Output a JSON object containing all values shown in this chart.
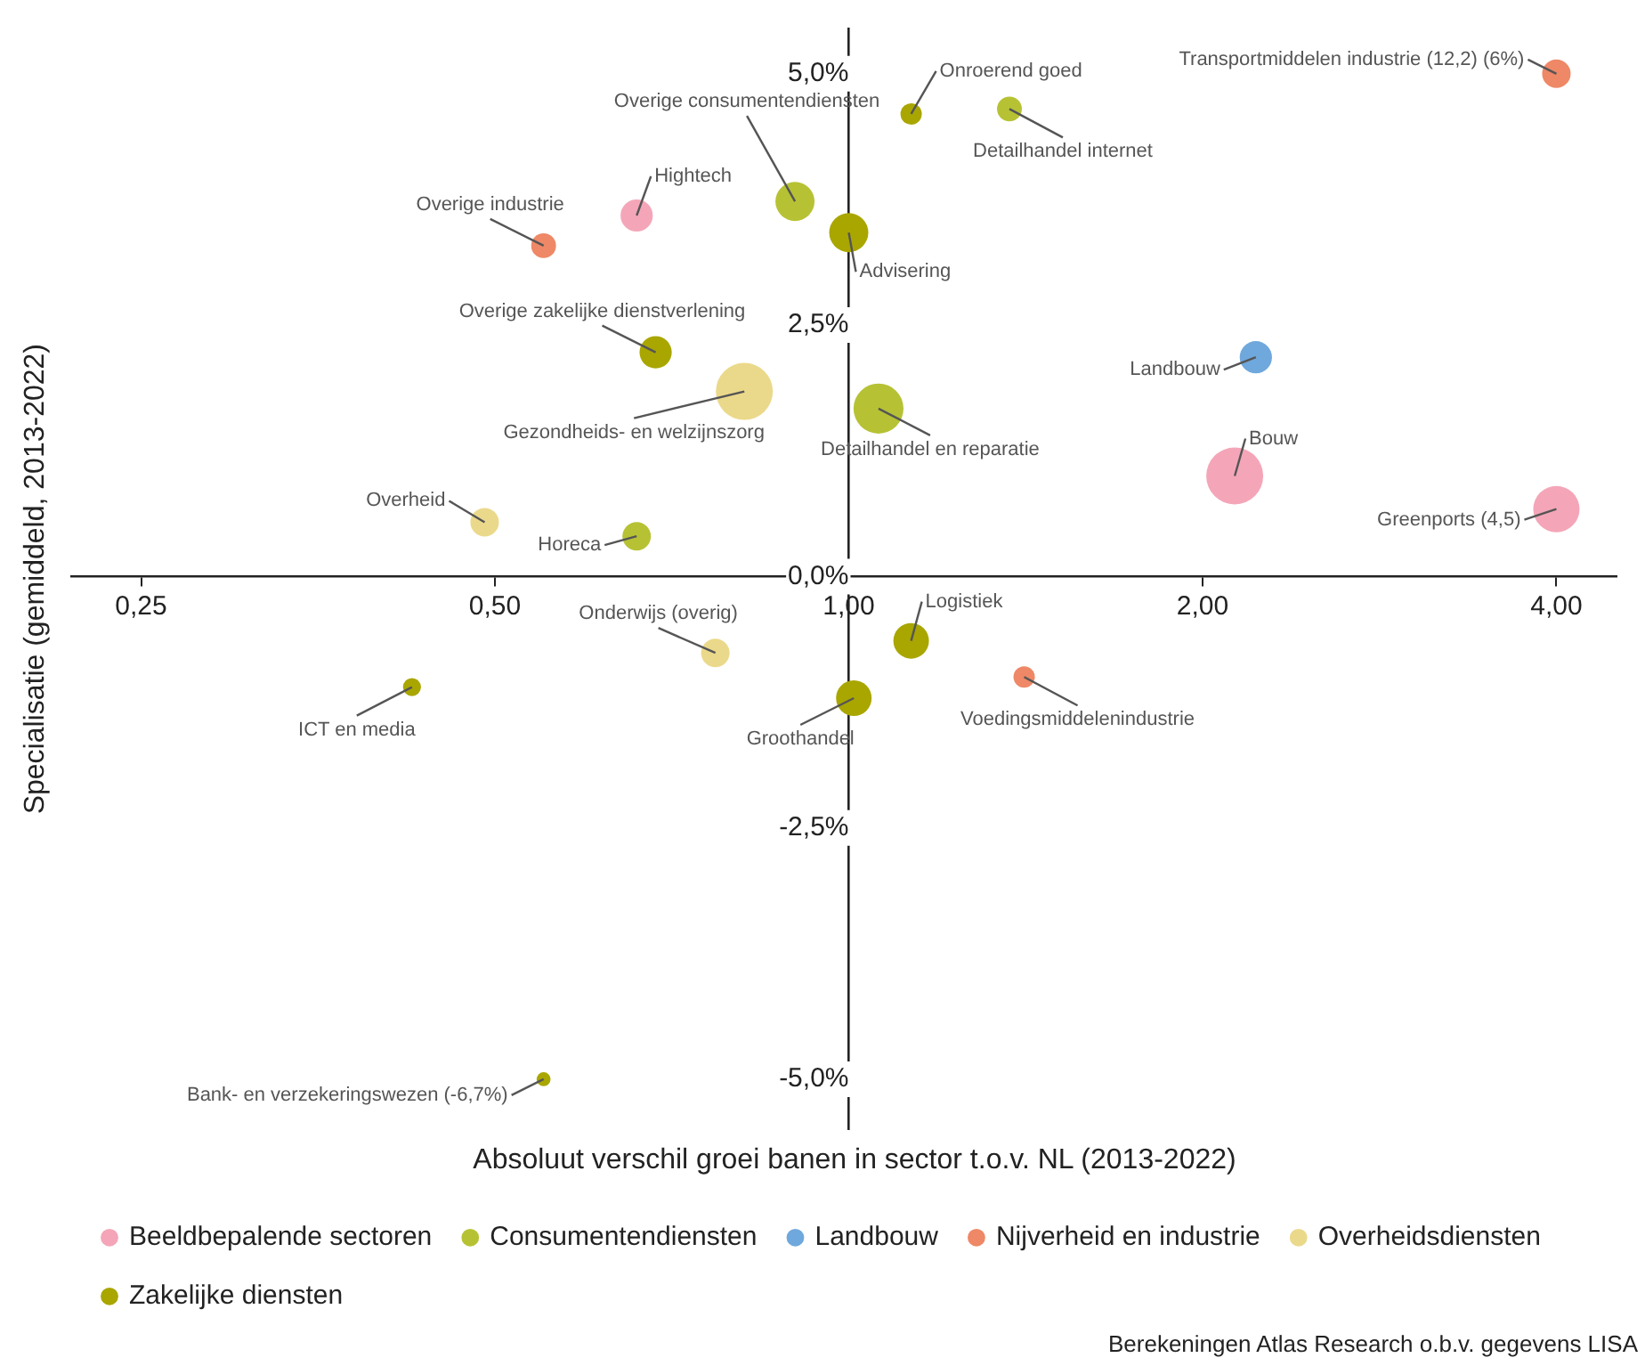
{
  "chart_data": {
    "type": "bubble",
    "xlabel": "Absoluut verschil groei banen in sector t.o.v. NL (2013-2022)",
    "ylabel": "Specialisatie (gemiddeld, 2013-2022)",
    "log": "x",
    "xlim": [
      0.218,
      4.5
    ],
    "ylim": [
      -5.5,
      5.45
    ],
    "xticks": [
      {
        "value": 0.25,
        "label": "0,25"
      },
      {
        "value": 0.5,
        "label": "0,50"
      },
      {
        "value": 1,
        "label": "1,00"
      },
      {
        "value": 2,
        "label": "2,00"
      },
      {
        "value": 4,
        "label": "4,00"
      }
    ],
    "yticks": [
      {
        "value": -5,
        "label": "-5,0%"
      },
      {
        "value": -2.5,
        "label": "-2,5%"
      },
      {
        "value": 0,
        "label": "0,0%"
      },
      {
        "value": 2.5,
        "label": "2,5%"
      },
      {
        "value": 5,
        "label": "5,0%"
      }
    ],
    "grid": false,
    "legend": "bottom left",
    "series": [
      {
        "name": "Beeldbepalende sectoren",
        "color": "#f4a6b8",
        "x": [
          0.66,
          2.13,
          4.0
        ],
        "values": [
          3.59,
          1.0,
          0.67
        ],
        "sizes": [
          0.32,
          1,
          0.66
        ]
      },
      {
        "name": "Consumentendiensten",
        "color": "#b6c234",
        "x": [
          1.37,
          0.9,
          1.06,
          0.66
        ],
        "values": [
          4.65,
          3.73,
          1.67,
          0.4
        ],
        "sizes": [
          0.19,
          0.47,
          0.77,
          0.25
        ]
      },
      {
        "name": "Landbouw",
        "color": "#6fa8dc",
        "x": [
          2.22
        ],
        "values": [
          2.18
        ],
        "sizes": [
          0.32
        ]
      },
      {
        "name": "Nijverheid en industrie",
        "color": "#ee8866",
        "x": [
          4.0,
          0.55,
          1.41
        ],
        "values": [
          5.0,
          3.29,
          -1.0
        ],
        "sizes": [
          0.25,
          0.19,
          0.14
        ]
      },
      {
        "name": "Overheidsdiensten",
        "color": "#ebd98b",
        "x": [
          0.815,
          0.49,
          0.77
        ],
        "values": [
          1.84,
          0.54,
          -0.76
        ],
        "sizes": [
          1,
          0.25,
          0.25
        ]
      },
      {
        "name": "Zakelijke diensten",
        "color": "#a9a600",
        "x": [
          1.13,
          1.0,
          0.685,
          1.13,
          0.425,
          1.01,
          0.55
        ],
        "values": [
          4.6,
          3.42,
          2.23,
          -0.64,
          -1.1,
          -1.21,
          -5.0
        ],
        "sizes": [
          0.14,
          0.47,
          0.32,
          0.39,
          0.1,
          0.39,
          0.06
        ]
      }
    ],
    "annotations": [
      {
        "text": "Transportmiddelen industrie (12,2) (6%)",
        "x": 4.0,
        "y": 5.0
      },
      {
        "text": "Onroerend goed",
        "x": 1.13,
        "y": 4.6
      },
      {
        "text": "Detailhandel internet",
        "x": 1.37,
        "y": 4.65
      },
      {
        "text": "Overige consumentendiensten",
        "x": 0.9,
        "y": 3.73
      },
      {
        "text": "Hightech",
        "x": 0.66,
        "y": 3.59
      },
      {
        "text": "Overige industrie",
        "x": 0.55,
        "y": 3.29
      },
      {
        "text": "Advisering",
        "x": 1.0,
        "y": 3.42
      },
      {
        "text": "Overige zakelijke dienstverlening",
        "x": 0.685,
        "y": 2.23
      },
      {
        "text": "Gezondheids- en welzijnszorg",
        "x": 0.815,
        "y": 1.84
      },
      {
        "text": "Detailhandel en reparatie",
        "x": 1.06,
        "y": 1.67
      },
      {
        "text": "Landbouw",
        "x": 2.22,
        "y": 2.18
      },
      {
        "text": "Bouw",
        "x": 2.13,
        "y": 1.0
      },
      {
        "text": "Greenports (4,5)",
        "x": 4.0,
        "y": 0.67
      },
      {
        "text": "Overheid",
        "x": 0.49,
        "y": 0.54
      },
      {
        "text": "Horeca",
        "x": 0.66,
        "y": 0.4
      },
      {
        "text": "Onderwijs (overig)",
        "x": 0.77,
        "y": -0.76
      },
      {
        "text": "Logistiek",
        "x": 1.13,
        "y": -0.64
      },
      {
        "text": "ICT en media",
        "x": 0.425,
        "y": -1.1
      },
      {
        "text": "Voedingsmiddelenindustrie",
        "x": 1.41,
        "y": -1.0
      },
      {
        "text": "Groothandel",
        "x": 1.01,
        "y": -1.21
      },
      {
        "text": "Bank- en verzekeringswezen (-6,7%)",
        "x": 0.55,
        "y": -5.0
      },
      "Berekeningen Atlas Research o.b.v. gegevens LISA"
    ]
  }
}
